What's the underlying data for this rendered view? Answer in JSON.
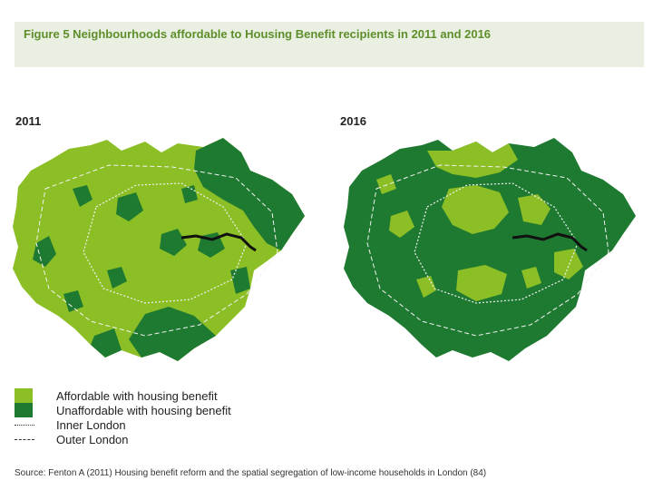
{
  "title": "Figure 5 Neighbourhoods affordable to Housing Benefit recipients in 2011 and 2016",
  "maps": [
    {
      "year": "2011",
      "dominant": "affordable"
    },
    {
      "year": "2016",
      "dominant": "unaffordable"
    }
  ],
  "legend": [
    {
      "label": "Affordable with housing benefit",
      "kind": "swatch",
      "color": "#8cbf26"
    },
    {
      "label": "Unaffordable with housing benefit",
      "kind": "swatch",
      "color": "#1f7a31"
    },
    {
      "label": "Inner London",
      "kind": "dotted-line"
    },
    {
      "label": "Outer London",
      "kind": "dashed-line"
    }
  ],
  "source": "Source: Fenton A (2011) Housing benefit reform and the spatial segregation of low-income households in London (84)",
  "colors": {
    "affordable": "#8cbf26",
    "unaffordable": "#1f7a31",
    "title": "#5e8e2b",
    "title_bg": "#eaf0e1",
    "river": "#111111"
  }
}
